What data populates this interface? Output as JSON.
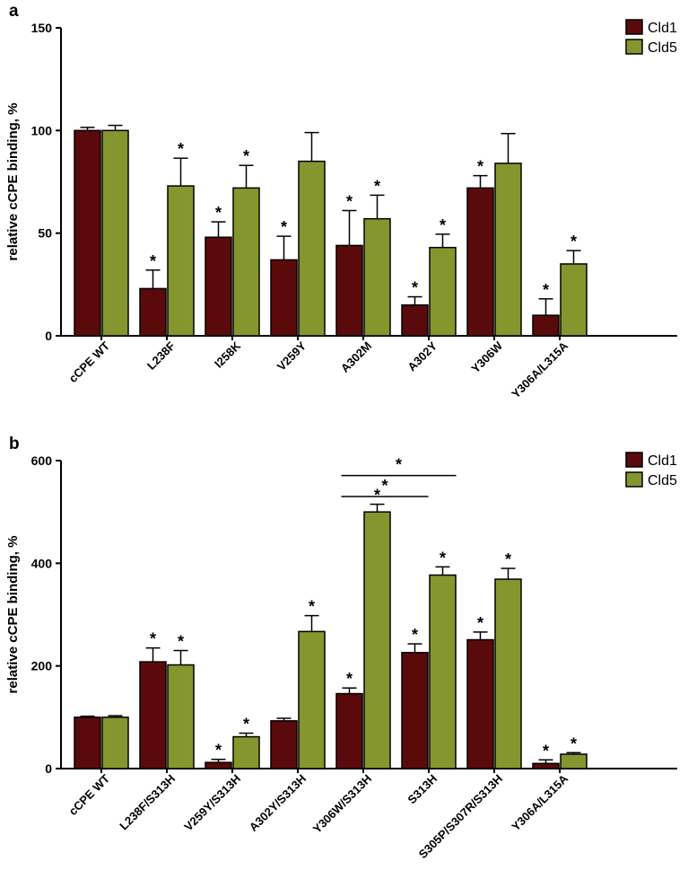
{
  "colors": {
    "cld1": "#5a0a0a",
    "cld5": "#86962e"
  },
  "chart_data": [
    {
      "type": "bar",
      "panel": "a",
      "ylabel": "relative cCPE binding, %",
      "ylim": [
        0,
        150
      ],
      "yticks": [
        0,
        50,
        100,
        150
      ],
      "legend_position": "top-right",
      "categories": [
        "cCPE WT",
        "L238F",
        "I258K",
        "V259Y",
        "A302M",
        "A302Y",
        "Y306W",
        "Y306A/L315A"
      ],
      "series": [
        {
          "name": "Cld1",
          "values": [
            100,
            23,
            48,
            37,
            44,
            15,
            72,
            10
          ],
          "errors": [
            1.5,
            9,
            7.5,
            11.5,
            17,
            4,
            6,
            8
          ],
          "significant": [
            false,
            true,
            true,
            true,
            true,
            true,
            true,
            true
          ]
        },
        {
          "name": "Cld5",
          "values": [
            100,
            73,
            72,
            85,
            57,
            43,
            84,
            35
          ],
          "errors": [
            2.5,
            13.5,
            11,
            14,
            11.5,
            6.5,
            14.5,
            6.5
          ],
          "significant": [
            false,
            true,
            true,
            false,
            true,
            true,
            false,
            true
          ]
        }
      ],
      "significance_mark": "*"
    },
    {
      "type": "bar",
      "panel": "b",
      "ylabel": "relative cCPE binding, %",
      "ylim": [
        0,
        600
      ],
      "yticks": [
        0,
        200,
        400,
        600
      ],
      "legend_position": "top-right",
      "categories": [
        "cCPE WT",
        "L238F/S313H",
        "V259Y/S313H",
        "A302Y/S313H",
        "Y306W/S313H",
        "S313H",
        "S305P/S307R/S313H",
        "Y306A/L315A"
      ],
      "series": [
        {
          "name": "Cld1",
          "values": [
            100,
            208,
            12,
            93,
            146,
            226,
            251,
            10
          ],
          "errors": [
            2,
            27,
            6,
            5,
            11,
            17,
            15,
            7
          ],
          "significant": [
            false,
            true,
            true,
            false,
            true,
            true,
            true,
            true
          ]
        },
        {
          "name": "Cld5",
          "values": [
            100,
            202,
            62,
            267,
            500,
            377,
            369,
            28
          ],
          "errors": [
            3,
            28,
            7,
            31,
            15,
            16,
            21,
            3
          ],
          "significant": [
            false,
            true,
            true,
            true,
            true,
            true,
            true,
            true
          ]
        }
      ],
      "significance_mark": "*",
      "brackets": [
        {
          "from": [
            "Y306W/S313H",
            "Cld5"
          ],
          "to": [
            "S313H",
            "Cld1"
          ],
          "y": 530,
          "label": "*"
        },
        {
          "from": [
            "Y306W/S313H",
            "Cld5"
          ],
          "to": [
            "S313H",
            "Cld5"
          ],
          "y": 571,
          "label": "*"
        }
      ]
    }
  ]
}
